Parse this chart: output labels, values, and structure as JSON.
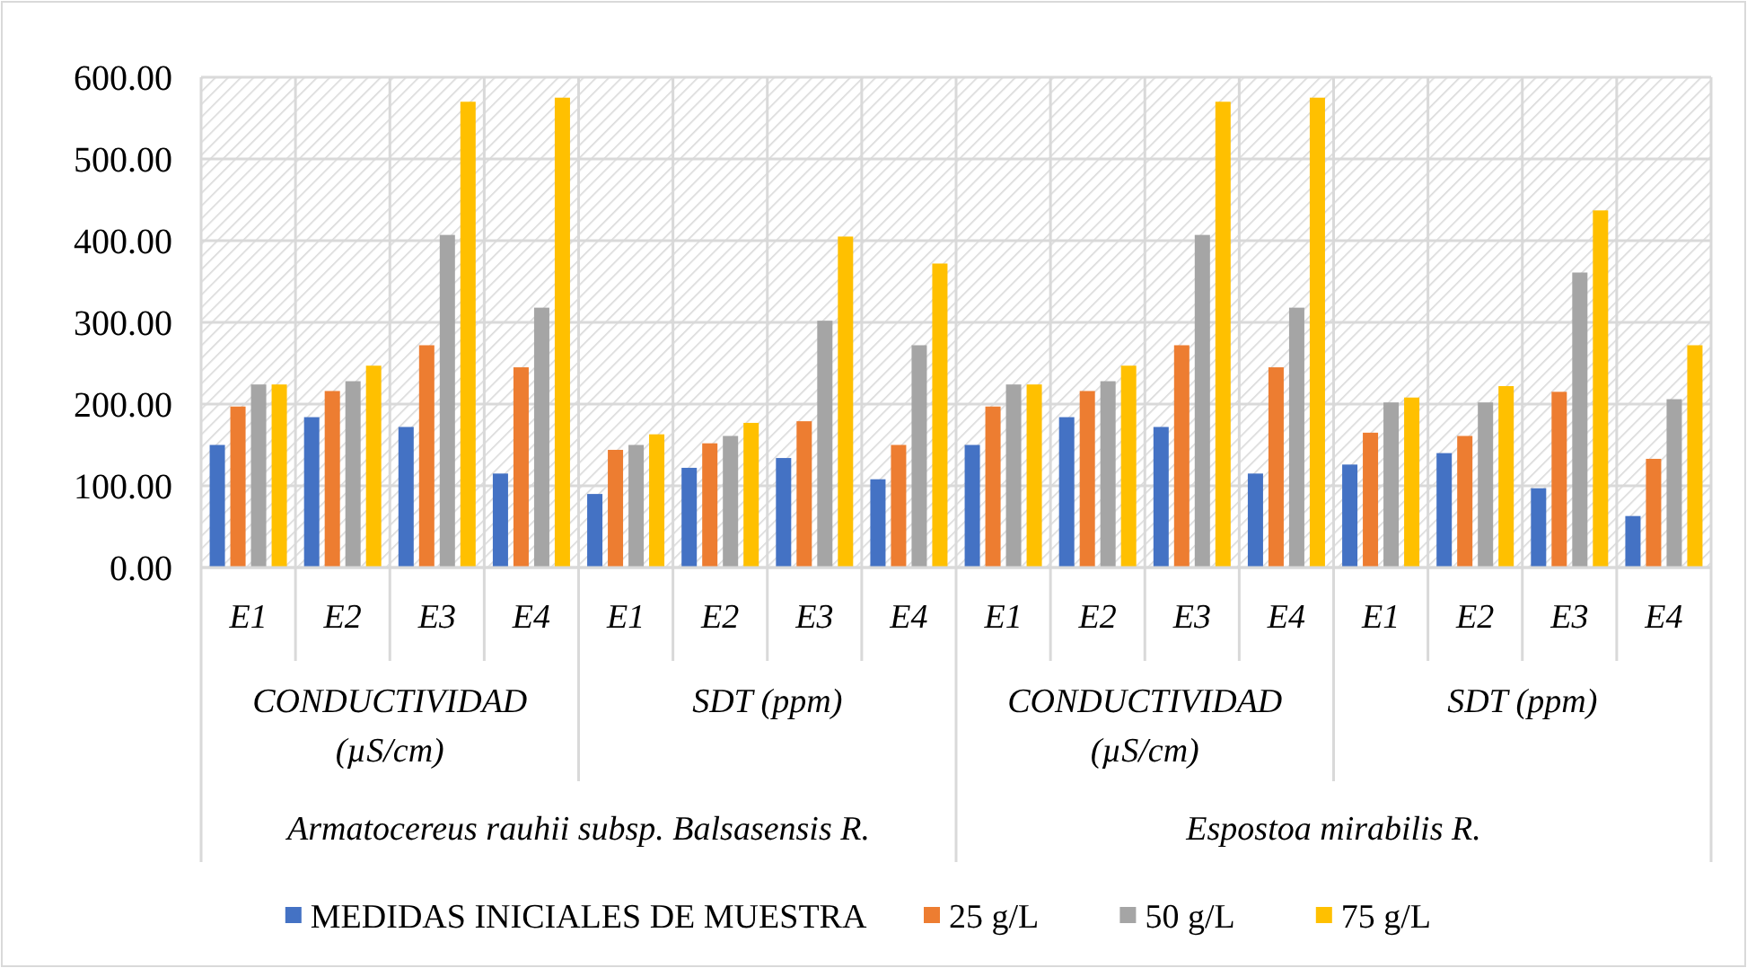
{
  "chart_data": {
    "type": "bar",
    "categories": [
      "E1",
      "E2",
      "E3",
      "E4",
      "E1",
      "E2",
      "E3",
      "E4",
      "E1",
      "E2",
      "E3",
      "E4",
      "E1",
      "E2",
      "E3",
      "E4"
    ],
    "series": [
      {
        "name": "MEDIDAS INICIALES DE MUESTRA",
        "color": "#4472c4",
        "values": [
          150,
          184,
          172,
          115,
          90,
          122,
          134,
          108,
          150,
          184,
          172,
          115,
          126,
          140,
          97,
          63
        ]
      },
      {
        "name": "25 g/L",
        "color": "#ed7d31",
        "values": [
          197,
          216,
          272,
          245,
          144,
          152,
          179,
          150,
          197,
          216,
          272,
          245,
          165,
          161,
          215,
          133
        ]
      },
      {
        "name": "50 g/L",
        "color": "#a5a5a5",
        "values": [
          224,
          228,
          407,
          318,
          150,
          161,
          302,
          272,
          224,
          228,
          407,
          318,
          202,
          202,
          361,
          206
        ]
      },
      {
        "name": "75 g/L",
        "color": "#ffc000",
        "values": [
          224,
          247,
          570,
          575,
          163,
          177,
          405,
          372,
          224,
          247,
          570,
          575,
          208,
          222,
          437,
          272
        ]
      }
    ],
    "annotations": [
      "CONDUCTIVIDAD (µS/cm)",
      "SDT (ppm)",
      "CONDUCTIVIDAD (µS/cm)",
      "SDT (ppm)",
      "Armatocereus rauhii subsp. Balsasensis R.",
      "Espostoa mirabilis R."
    ],
    "ylim": [
      0,
      600
    ],
    "yticks": [
      {
        "value": 0,
        "label": "0.00"
      },
      {
        "value": 100,
        "label": "100.00"
      },
      {
        "value": 200,
        "label": "200.00"
      },
      {
        "value": 300,
        "label": "300.00"
      },
      {
        "value": 400,
        "label": "400.00"
      },
      {
        "value": 500,
        "label": "500.00"
      },
      {
        "value": 600,
        "label": "600.00"
      }
    ],
    "grid": true,
    "legend": "bottom"
  }
}
